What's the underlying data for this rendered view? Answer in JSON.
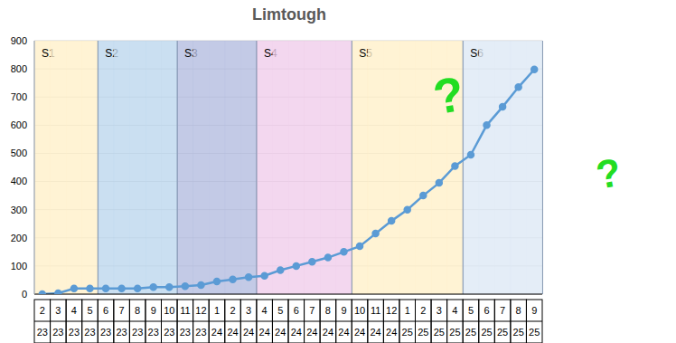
{
  "chart_data": {
    "type": "line",
    "title": "Limtough",
    "categories": [
      [
        "2",
        "23"
      ],
      [
        "3",
        "23"
      ],
      [
        "4",
        "23"
      ],
      [
        "5",
        "23"
      ],
      [
        "6",
        "23"
      ],
      [
        "7",
        "23"
      ],
      [
        "8",
        "23"
      ],
      [
        "9",
        "23"
      ],
      [
        "10",
        "23"
      ],
      [
        "11",
        "23"
      ],
      [
        "12",
        "23"
      ],
      [
        "1",
        "24"
      ],
      [
        "2",
        "24"
      ],
      [
        "3",
        "24"
      ],
      [
        "4",
        "24"
      ],
      [
        "5",
        "24"
      ],
      [
        "6",
        "24"
      ],
      [
        "7",
        "24"
      ],
      [
        "8",
        "24"
      ],
      [
        "9",
        "24"
      ],
      [
        "10",
        "24"
      ],
      [
        "11",
        "24"
      ],
      [
        "12",
        "24"
      ],
      [
        "1",
        "25"
      ],
      [
        "2",
        "25"
      ],
      [
        "3",
        "25"
      ],
      [
        "4",
        "25"
      ],
      [
        "5",
        "25"
      ],
      [
        "6",
        "25"
      ],
      [
        "7",
        "25"
      ],
      [
        "8",
        "25"
      ],
      [
        "9",
        "25"
      ]
    ],
    "values": [
      0,
      3,
      20,
      20,
      20,
      20,
      20,
      25,
      25,
      28,
      32,
      45,
      52,
      60,
      65,
      85,
      100,
      115,
      130,
      150,
      170,
      215,
      260,
      300,
      350,
      395,
      455,
      495,
      600,
      665,
      735,
      798
    ],
    "color": "#5b9bd5",
    "marker": "circle",
    "ylim": [
      0,
      900
    ],
    "yticks": [
      0,
      100,
      200,
      300,
      400,
      500,
      600,
      700,
      800,
      900
    ],
    "grid": true,
    "seasons": [
      {
        "label": "S1",
        "start": 0,
        "end": 3,
        "color": "#fff0c9"
      },
      {
        "label": "S2",
        "start": 4,
        "end": 8,
        "color": "#bdd7ee"
      },
      {
        "label": "S3",
        "start": 9,
        "end": 13,
        "color": "#b4bde0"
      },
      {
        "label": "S4",
        "start": 14,
        "end": 19,
        "color": "#f0cdeb"
      },
      {
        "label": "S5",
        "start": 20,
        "end": 26,
        "color": "#fff0c9"
      },
      {
        "label": "S6",
        "start": 27,
        "end": 31,
        "color": "#dde8f5"
      }
    ],
    "annotations": [
      "?",
      "?"
    ]
  }
}
